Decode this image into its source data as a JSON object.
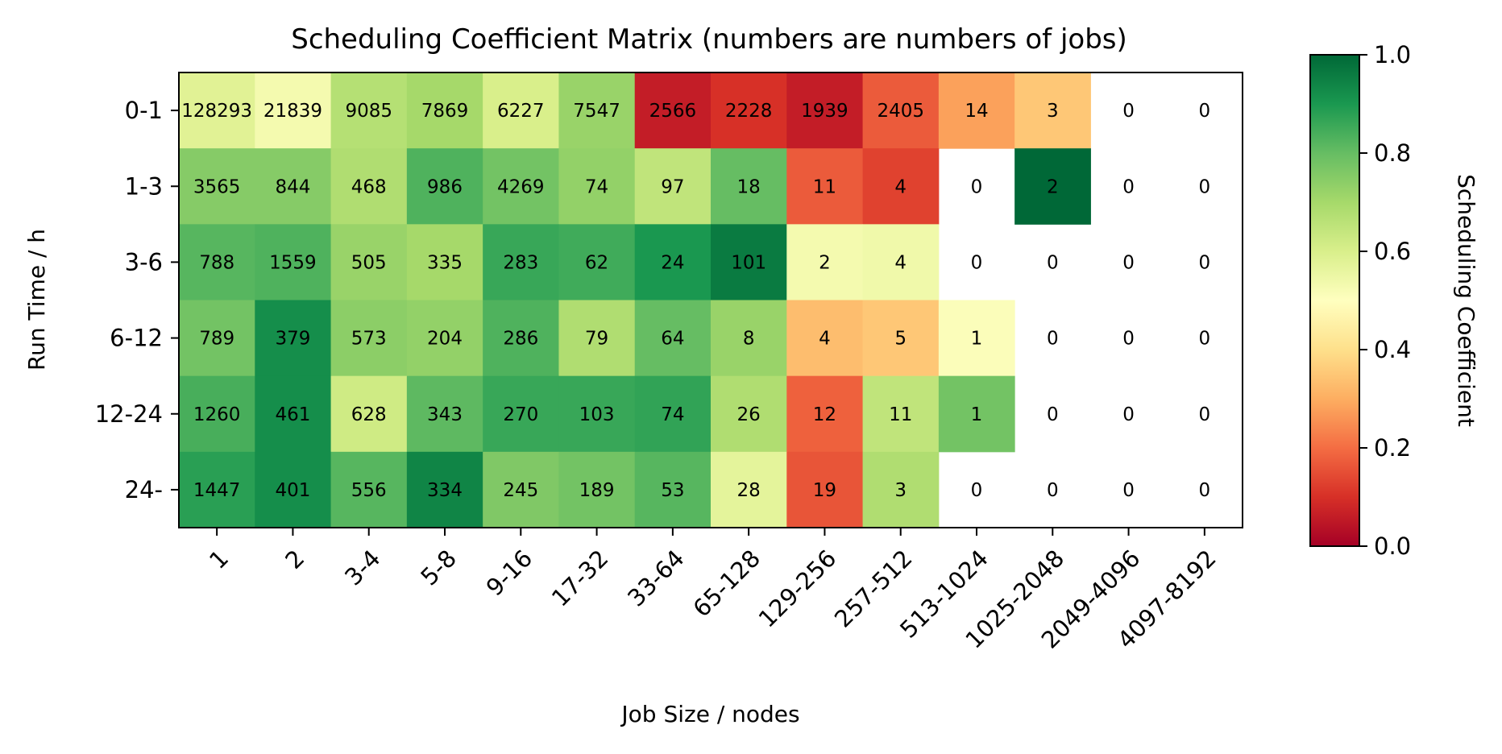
{
  "chart_data": {
    "type": "heatmap",
    "title": "Scheduling Coefficient Matrix (numbers are numbers of jobs)",
    "xlabel": "Job Size / nodes",
    "ylabel": "Run Time / h",
    "x_categories": [
      "1",
      "2",
      "3-4",
      "5-8",
      "9-16",
      "17-32",
      "33-64",
      "65-128",
      "129-256",
      "257-512",
      "513-1024",
      "1025-2048",
      "2049-4096",
      "4097-8192"
    ],
    "y_categories": [
      "0-1",
      "1-3",
      "3-6",
      "6-12",
      "12-24",
      "24-"
    ],
    "counts": [
      [
        128293,
        21839,
        9085,
        7869,
        6227,
        7547,
        2566,
        2228,
        1939,
        2405,
        14,
        3,
        0,
        0
      ],
      [
        3565,
        844,
        468,
        986,
        4269,
        74,
        97,
        18,
        11,
        4,
        0,
        2,
        0,
        0
      ],
      [
        788,
        1559,
        505,
        335,
        283,
        62,
        24,
        101,
        2,
        4,
        0,
        0,
        0,
        0
      ],
      [
        789,
        379,
        573,
        204,
        286,
        79,
        64,
        8,
        4,
        5,
        1,
        0,
        0,
        0
      ],
      [
        1260,
        461,
        628,
        343,
        270,
        103,
        74,
        26,
        12,
        11,
        1,
        0,
        0,
        0
      ],
      [
        1447,
        401,
        556,
        334,
        245,
        189,
        53,
        28,
        19,
        3,
        0,
        0,
        0,
        0
      ]
    ],
    "coefficients": [
      [
        0.58,
        0.53,
        0.67,
        0.7,
        0.6,
        0.72,
        0.06,
        0.1,
        0.06,
        0.17,
        0.28,
        0.35,
        null,
        null
      ],
      [
        0.75,
        0.75,
        0.68,
        0.83,
        0.78,
        0.73,
        0.65,
        0.8,
        0.17,
        0.13,
        null,
        1.0,
        null,
        null
      ],
      [
        0.82,
        0.83,
        0.72,
        0.7,
        0.86,
        0.85,
        0.9,
        0.96,
        0.53,
        0.54,
        null,
        null,
        null,
        null
      ],
      [
        0.78,
        0.92,
        0.74,
        0.73,
        0.83,
        0.68,
        0.8,
        0.72,
        0.33,
        0.35,
        0.51,
        null,
        null,
        null
      ],
      [
        0.84,
        0.92,
        0.62,
        0.81,
        0.86,
        0.86,
        0.87,
        0.68,
        0.18,
        0.65,
        0.78,
        null,
        null,
        null
      ],
      [
        0.88,
        0.92,
        0.82,
        0.94,
        0.76,
        0.78,
        0.82,
        0.57,
        0.16,
        0.68,
        null,
        null,
        null,
        null
      ]
    ],
    "colorbar": {
      "label": "Scheduling Coefficient",
      "range": [
        0.0,
        1.0
      ],
      "ticks": [
        "0.0",
        "0.2",
        "0.4",
        "0.6",
        "0.8",
        "1.0"
      ],
      "colormap": "RdYlGn"
    }
  }
}
